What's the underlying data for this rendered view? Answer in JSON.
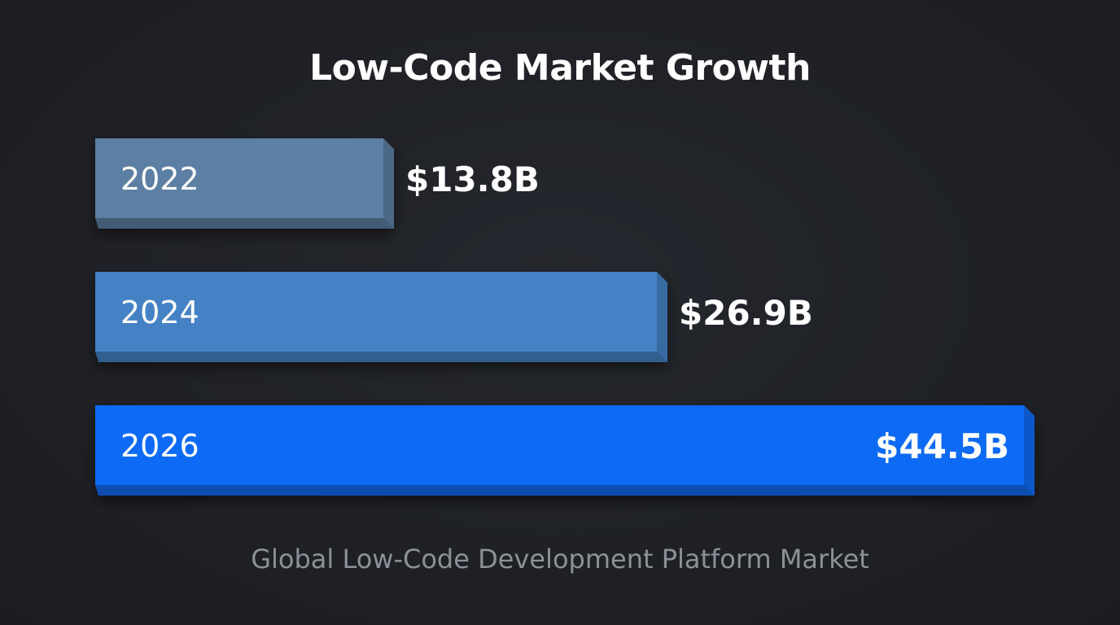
{
  "chart_data": {
    "type": "bar",
    "orientation": "horizontal",
    "title": "Low-Code Market Growth",
    "subtitle": "Global Low-Code Development Platform Market",
    "categories": [
      "2022",
      "2024",
      "2026"
    ],
    "values": [
      13.8,
      26.9,
      44.5
    ],
    "value_labels": [
      "$13.8B",
      "$26.9B",
      "$44.5B"
    ],
    "colors": {
      "2022": "#5b7fa3",
      "2024": "#4482c5",
      "2026": "#0f6bf5"
    },
    "background": "#1f2126",
    "grid": false,
    "legend": "none"
  }
}
